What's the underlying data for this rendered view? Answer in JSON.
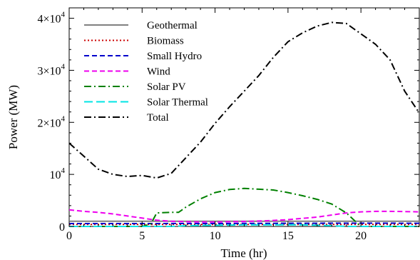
{
  "chart_data": {
    "type": "line",
    "xlabel": "Time (hr)",
    "ylabel": "Power (MW)",
    "xlim": [
      0,
      24
    ],
    "ylim": [
      0,
      42000
    ],
    "grid": false,
    "legend_position": "top-left",
    "x_ticks": [
      0,
      5,
      10,
      15,
      20
    ],
    "x_tick_labels": [
      "0",
      "5",
      "10",
      "15",
      "20"
    ],
    "y_ticks": [
      0,
      10000,
      20000,
      30000,
      40000
    ],
    "y_tick_labels": [
      {
        "base": "0",
        "exp": ""
      },
      {
        "base": "10",
        "exp": "4"
      },
      {
        "base": "2×10",
        "exp": "4"
      },
      {
        "base": "3×10",
        "exp": "4"
      },
      {
        "base": "4×10",
        "exp": "4"
      }
    ],
    "series": [
      {
        "name": "Geothermal",
        "color": "#808080",
        "dash": "none",
        "x": [
          0,
          4,
          8,
          12,
          16,
          20,
          24
        ],
        "y": [
          1000,
          1000,
          1000,
          1000,
          1000,
          1000,
          1000
        ]
      },
      {
        "name": "Biomass",
        "color": "#cc0000",
        "dash": "dotted",
        "x": [
          0,
          4,
          8,
          12,
          16,
          20,
          24
        ],
        "y": [
          400,
          400,
          400,
          400,
          400,
          400,
          400
        ]
      },
      {
        "name": "Small Hydro",
        "color": "#0000cc",
        "dash": "dashed",
        "x": [
          0,
          4,
          8,
          12,
          16,
          20,
          24
        ],
        "y": [
          550,
          550,
          560,
          580,
          600,
          620,
          600
        ]
      },
      {
        "name": "Wind",
        "color": "#ee00ee",
        "dash": "dashed",
        "x": [
          0,
          1,
          2,
          3,
          4,
          5,
          6,
          7,
          8,
          9,
          10,
          11,
          12,
          13,
          14,
          15,
          16,
          17,
          18,
          19,
          20,
          21,
          22,
          23,
          24
        ],
        "y": [
          3200,
          2900,
          2700,
          2400,
          2000,
          1600,
          1200,
          1000,
          900,
          850,
          850,
          900,
          950,
          1050,
          1150,
          1300,
          1550,
          1800,
          2200,
          2600,
          2800,
          2900,
          2900,
          2850,
          2800
        ]
      },
      {
        "name": "Solar PV",
        "color": "#008000",
        "dash": "dashdot",
        "x": [
          0,
          5,
          5.6,
          6,
          7,
          7.5,
          8,
          9,
          10,
          11,
          12,
          13,
          14,
          15,
          16,
          17,
          18,
          19,
          19.8,
          20,
          24
        ],
        "y": [
          0,
          0,
          500,
          2600,
          2700,
          2700,
          3700,
          5300,
          6500,
          7100,
          7300,
          7150,
          7000,
          6500,
          5900,
          5200,
          4300,
          2600,
          500,
          0,
          0
        ]
      },
      {
        "name": "Solar Thermal",
        "color": "#00e5e5",
        "dash": "longdash",
        "x": [
          0,
          7,
          8,
          12,
          16,
          18,
          19,
          24
        ],
        "y": [
          0,
          0,
          150,
          300,
          300,
          150,
          0,
          0
        ]
      },
      {
        "name": "Total",
        "color": "#000000",
        "dash": "dashdot",
        "x": [
          0,
          1,
          2,
          3,
          4,
          5,
          6,
          7,
          8,
          9,
          10,
          11,
          12,
          13,
          14,
          15,
          16,
          17,
          18,
          19,
          20,
          21,
          22,
          23,
          24
        ],
        "y": [
          16000,
          13500,
          11000,
          10000,
          9600,
          9800,
          9300,
          10200,
          13200,
          16200,
          19800,
          23000,
          26000,
          29000,
          32500,
          35500,
          37200,
          38500,
          39200,
          39000,
          37000,
          35000,
          32000,
          26000,
          21800
        ]
      }
    ]
  }
}
